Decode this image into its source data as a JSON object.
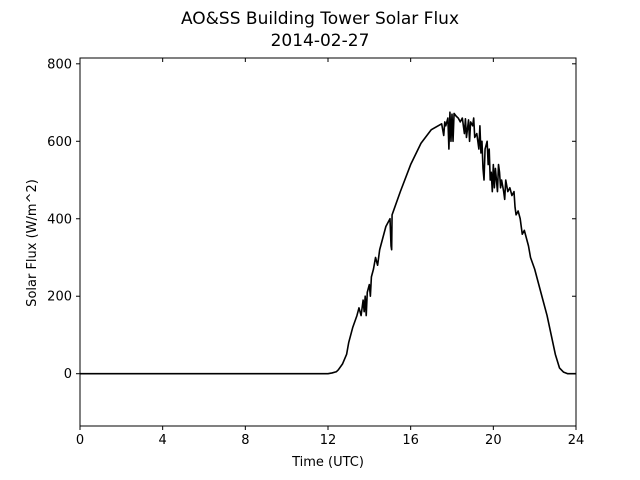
{
  "chart_data": {
    "type": "line",
    "title": "AO&SS Building Tower Solar Flux",
    "subtitle": "2014-02-27",
    "xlabel": "Time (UTC)",
    "ylabel": "Solar Flux (W/m^2)",
    "xlim": [
      0,
      24
    ],
    "ylim": [
      -135,
      815
    ],
    "xticks": [
      0,
      4,
      8,
      12,
      16,
      20,
      24
    ],
    "yticks": [
      0,
      200,
      400,
      600,
      800
    ],
    "grid": false,
    "series": [
      {
        "color": "#000000",
        "x": [
          0,
          5.6,
          12.0,
          12.2,
          12.4,
          12.5,
          12.7,
          12.9,
          13.0,
          13.2,
          13.4,
          13.5,
          13.6,
          13.7,
          13.75,
          13.8,
          13.85,
          13.9,
          14.0,
          14.05,
          14.1,
          14.2,
          14.3,
          14.4,
          14.5,
          14.6,
          14.7,
          14.8,
          14.9,
          15.0,
          15.05,
          15.08,
          15.1,
          15.2,
          15.5,
          16.0,
          16.5,
          17.0,
          17.5,
          17.6,
          17.65,
          17.7,
          17.8,
          17.85,
          17.9,
          17.95,
          18.0,
          18.05,
          18.1,
          18.2,
          18.3,
          18.4,
          18.5,
          18.6,
          18.65,
          18.7,
          18.8,
          18.85,
          18.9,
          19.0,
          19.05,
          19.1,
          19.2,
          19.25,
          19.3,
          19.35,
          19.4,
          19.45,
          19.5,
          19.55,
          19.6,
          19.7,
          19.75,
          19.8,
          19.85,
          19.9,
          19.95,
          20.0,
          20.05,
          20.1,
          20.15,
          20.2,
          20.25,
          20.3,
          20.35,
          20.4,
          20.5,
          20.55,
          20.6,
          20.7,
          20.8,
          20.9,
          21.0,
          21.05,
          21.1,
          21.2,
          21.3,
          21.35,
          21.4,
          21.5,
          21.6,
          21.7,
          21.8,
          22.0,
          22.2,
          22.4,
          22.6,
          22.8,
          23.0,
          23.2,
          23.4,
          23.6,
          23.8,
          24.0
        ],
        "y": [
          0,
          0,
          0,
          2,
          5,
          10,
          25,
          50,
          80,
          120,
          150,
          170,
          150,
          190,
          160,
          200,
          150,
          210,
          230,
          200,
          250,
          270,
          300,
          280,
          320,
          340,
          360,
          380,
          390,
          400,
          330,
          320,
          410,
          425,
          470,
          540,
          595,
          630,
          645,
          615,
          650,
          640,
          660,
          580,
          675,
          600,
          670,
          600,
          672,
          665,
          660,
          650,
          660,
          620,
          658,
          610,
          655,
          600,
          650,
          640,
          660,
          610,
          620,
          600,
          580,
          640,
          570,
          600,
          530,
          500,
          580,
          600,
          540,
          580,
          500,
          520,
          470,
          540,
          480,
          530,
          500,
          470,
          540,
          520,
          480,
          500,
          470,
          450,
          500,
          470,
          480,
          460,
          470,
          430,
          410,
          420,
          400,
          380,
          360,
          370,
          350,
          330,
          300,
          270,
          230,
          190,
          150,
          100,
          50,
          15,
          4,
          0,
          0,
          0
        ]
      }
    ]
  }
}
